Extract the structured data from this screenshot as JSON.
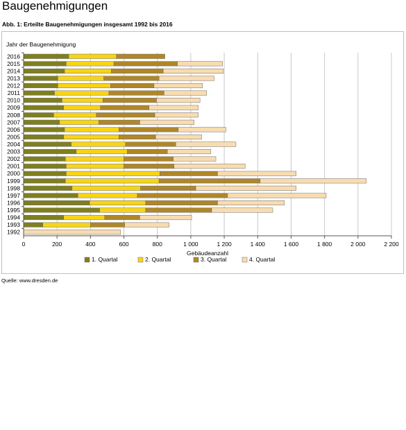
{
  "page": {
    "title": "Baugenehmigungen",
    "caption": "Abb. 1: Erteilte Baugenehmigungen insgesamt 1992 bis 2016",
    "source": "Quelle: www.dresden.de"
  },
  "colors": {
    "q1": "#7f7f1f",
    "q2": "#f7d417",
    "q3": "#b08728",
    "q4": "#f8dcb0",
    "grid": "#c8c8c8",
    "bar_outline": "#6b6b6b"
  },
  "chart_data": {
    "type": "bar",
    "orientation": "horizontal",
    "stacked": true,
    "ylabel": "Jahr der Baugenehmigung",
    "xlabel": "Gebäudeanzahl",
    "xlim": [
      0,
      2200
    ],
    "xticks": [
      0,
      200,
      400,
      600,
      800,
      1000,
      1200,
      1400,
      1600,
      1800,
      2000,
      2200
    ],
    "xtick_labels": [
      "0",
      "200",
      "400",
      "600",
      "800",
      "1 000",
      "1 200",
      "1 400",
      "1 600",
      "1 800",
      "2 000",
      "2 200"
    ],
    "grid": true,
    "legend_position": "bottom",
    "categories": [
      "2016",
      "2015",
      "2014",
      "2013",
      "2012",
      "2011",
      "2010",
      "2009",
      "2008",
      "2007",
      "2006",
      "2005",
      "2004",
      "2003",
      "2002",
      "2001",
      "2000",
      "1999",
      "1998",
      "1997",
      "1996",
      "1995",
      "1994",
      "1993",
      "1992"
    ],
    "series": [
      {
        "name": "1. Quartal",
        "values": [
          270,
          255,
          245,
          205,
          205,
          185,
          230,
          240,
          180,
          215,
          245,
          240,
          285,
          315,
          250,
          255,
          255,
          250,
          290,
          325,
          395,
          455,
          240,
          115,
          0
        ]
      },
      {
        "name": "2. Quartal",
        "values": [
          285,
          285,
          280,
          275,
          315,
          325,
          245,
          220,
          255,
          235,
          325,
          330,
          325,
          305,
          350,
          345,
          560,
          560,
          410,
          355,
          335,
          275,
          245,
          285,
          0
        ]
      },
      {
        "name": "3. Quartal",
        "values": [
          290,
          380,
          310,
          330,
          260,
          330,
          320,
          290,
          350,
          245,
          355,
          220,
          300,
          240,
          295,
          300,
          345,
          605,
          330,
          540,
          430,
          395,
          210,
          205,
          0
        ]
      },
      {
        "name": "4. Quartal",
        "values": [
          0,
          270,
          360,
          330,
          290,
          255,
          260,
          295,
          260,
          325,
          285,
          275,
          360,
          260,
          255,
          425,
          470,
          635,
          600,
          590,
          400,
          365,
          310,
          265,
          580
        ]
      }
    ]
  }
}
